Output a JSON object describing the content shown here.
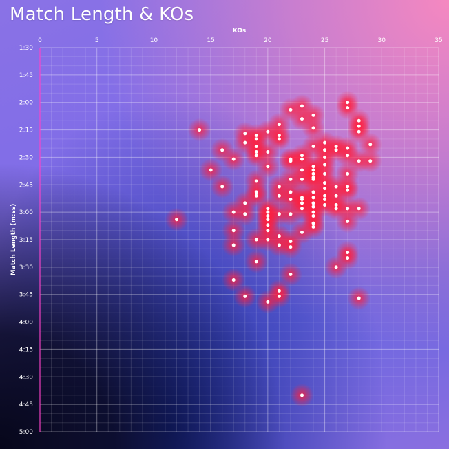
{
  "chart_data": {
    "type": "scatter",
    "title": "Match Length & KOs",
    "xlabel": "KOs",
    "ylabel": "Match Length (m:ss)",
    "xlim": [
      0,
      35
    ],
    "ylim_seconds": [
      90,
      300
    ],
    "x_axis_position": "top",
    "y_axis_inverted": true,
    "x_ticks": [
      "0",
      "5",
      "10",
      "15",
      "20",
      "25",
      "30",
      "35"
    ],
    "y_ticks": [
      "1:30",
      "1:45",
      "2:00",
      "2:15",
      "2:30",
      "2:45",
      "3:00",
      "3:15",
      "3:30",
      "3:45",
      "4:00",
      "4:15",
      "4:30",
      "4:45",
      "5:00"
    ],
    "grid": true,
    "colors": {
      "point": "#ffffff",
      "glow": "#ff1e3c",
      "grid": "#ffffff",
      "axis_line": "#ff3cc8"
    },
    "points": [
      {
        "x": 27,
        "y": "2:00"
      },
      {
        "x": 27,
        "y": "2:03"
      },
      {
        "x": 23,
        "y": "2:02"
      },
      {
        "x": 22,
        "y": "2:04"
      },
      {
        "x": 24,
        "y": "2:07"
      },
      {
        "x": 23,
        "y": "2:09"
      },
      {
        "x": 28,
        "y": "2:10"
      },
      {
        "x": 28,
        "y": "2:13"
      },
      {
        "x": 28,
        "y": "2:16"
      },
      {
        "x": 21,
        "y": "2:12"
      },
      {
        "x": 24,
        "y": "2:14"
      },
      {
        "x": 14,
        "y": "2:15"
      },
      {
        "x": 20,
        "y": "2:16"
      },
      {
        "x": 18,
        "y": "2:17"
      },
      {
        "x": 19,
        "y": "2:18"
      },
      {
        "x": 21,
        "y": "2:18"
      },
      {
        "x": 19,
        "y": "2:20"
      },
      {
        "x": 21,
        "y": "2:20"
      },
      {
        "x": 18,
        "y": "2:22"
      },
      {
        "x": 25,
        "y": "2:22"
      },
      {
        "x": 29,
        "y": "2:23"
      },
      {
        "x": 19,
        "y": "2:24"
      },
      {
        "x": 24,
        "y": "2:24"
      },
      {
        "x": 26,
        "y": "2:24"
      },
      {
        "x": 27,
        "y": "2:25"
      },
      {
        "x": 26,
        "y": "2:26"
      },
      {
        "x": 16,
        "y": "2:26"
      },
      {
        "x": 25,
        "y": "2:26"
      },
      {
        "x": 19,
        "y": "2:27"
      },
      {
        "x": 20,
        "y": "2:27"
      },
      {
        "x": 19,
        "y": "2:29"
      },
      {
        "x": 25,
        "y": "2:30"
      },
      {
        "x": 27,
        "y": "2:29"
      },
      {
        "x": 23,
        "y": "2:29"
      },
      {
        "x": 17,
        "y": "2:31"
      },
      {
        "x": 22,
        "y": "2:31"
      },
      {
        "x": 23,
        "y": "2:31"
      },
      {
        "x": 22,
        "y": "2:32"
      },
      {
        "x": 28,
        "y": "2:32"
      },
      {
        "x": 29,
        "y": "2:32"
      },
      {
        "x": 25,
        "y": "2:34"
      },
      {
        "x": 20,
        "y": "2:35"
      },
      {
        "x": 24,
        "y": "2:35"
      },
      {
        "x": 15,
        "y": "2:37"
      },
      {
        "x": 23,
        "y": "2:37"
      },
      {
        "x": 24,
        "y": "2:37"
      },
      {
        "x": 24,
        "y": "2:39"
      },
      {
        "x": 25,
        "y": "2:39"
      },
      {
        "x": 27,
        "y": "2:39"
      },
      {
        "x": 24,
        "y": "2:41"
      },
      {
        "x": 22,
        "y": "2:42"
      },
      {
        "x": 23,
        "y": "2:42"
      },
      {
        "x": 24,
        "y": "2:42"
      },
      {
        "x": 19,
        "y": "2:43"
      },
      {
        "x": 25,
        "y": "2:44"
      },
      {
        "x": 21,
        "y": "2:46"
      },
      {
        "x": 16,
        "y": "2:46"
      },
      {
        "x": 26,
        "y": "2:46"
      },
      {
        "x": 27,
        "y": "2:46"
      },
      {
        "x": 25,
        "y": "2:47"
      },
      {
        "x": 27,
        "y": "2:48"
      },
      {
        "x": 19,
        "y": "2:49"
      },
      {
        "x": 22,
        "y": "2:49"
      },
      {
        "x": 24,
        "y": "2:49"
      },
      {
        "x": 19,
        "y": "2:51"
      },
      {
        "x": 21,
        "y": "2:51"
      },
      {
        "x": 25,
        "y": "2:51"
      },
      {
        "x": 26,
        "y": "2:51"
      },
      {
        "x": 24,
        "y": "2:52"
      },
      {
        "x": 23,
        "y": "2:52"
      },
      {
        "x": 23,
        "y": "2:53"
      },
      {
        "x": 22,
        "y": "2:53"
      },
      {
        "x": 25,
        "y": "2:53"
      },
      {
        "x": 23,
        "y": "2:55"
      },
      {
        "x": 24,
        "y": "2:55"
      },
      {
        "x": 18,
        "y": "2:55"
      },
      {
        "x": 25,
        "y": "2:56"
      },
      {
        "x": 26,
        "y": "2:56"
      },
      {
        "x": 24,
        "y": "2:57"
      },
      {
        "x": 20,
        "y": "2:58"
      },
      {
        "x": 27,
        "y": "2:58"
      },
      {
        "x": 28,
        "y": "2:58"
      },
      {
        "x": 23,
        "y": "2:58"
      },
      {
        "x": 26,
        "y": "2:58"
      },
      {
        "x": 17,
        "y": "3:00"
      },
      {
        "x": 20,
        "y": "3:00"
      },
      {
        "x": 24,
        "y": "3:00"
      },
      {
        "x": 18,
        "y": "3:01"
      },
      {
        "x": 21,
        "y": "3:01"
      },
      {
        "x": 22,
        "y": "3:01"
      },
      {
        "x": 24,
        "y": "3:02"
      },
      {
        "x": 20,
        "y": "3:02"
      },
      {
        "x": 12,
        "y": "3:04"
      },
      {
        "x": 20,
        "y": "3:04"
      },
      {
        "x": 27,
        "y": "3:05"
      },
      {
        "x": 24,
        "y": "3:06"
      },
      {
        "x": 20,
        "y": "3:07"
      },
      {
        "x": 24,
        "y": "3:08"
      },
      {
        "x": 17,
        "y": "3:10"
      },
      {
        "x": 20,
        "y": "3:10"
      },
      {
        "x": 23,
        "y": "3:11"
      },
      {
        "x": 21,
        "y": "3:13"
      },
      {
        "x": 19,
        "y": "3:15"
      },
      {
        "x": 20,
        "y": "3:15"
      },
      {
        "x": 22,
        "y": "3:16"
      },
      {
        "x": 17,
        "y": "3:18"
      },
      {
        "x": 21,
        "y": "3:18"
      },
      {
        "x": 22,
        "y": "3:19"
      },
      {
        "x": 27,
        "y": "3:22"
      },
      {
        "x": 27,
        "y": "3:25"
      },
      {
        "x": 19,
        "y": "3:27"
      },
      {
        "x": 26,
        "y": "3:30"
      },
      {
        "x": 22,
        "y": "3:34"
      },
      {
        "x": 17,
        "y": "3:37"
      },
      {
        "x": 21,
        "y": "3:43"
      },
      {
        "x": 21,
        "y": "3:46"
      },
      {
        "x": 18,
        "y": "3:46"
      },
      {
        "x": 28,
        "y": "3:47"
      },
      {
        "x": 20,
        "y": "3:49"
      },
      {
        "x": 23,
        "y": "4:40"
      }
    ]
  }
}
